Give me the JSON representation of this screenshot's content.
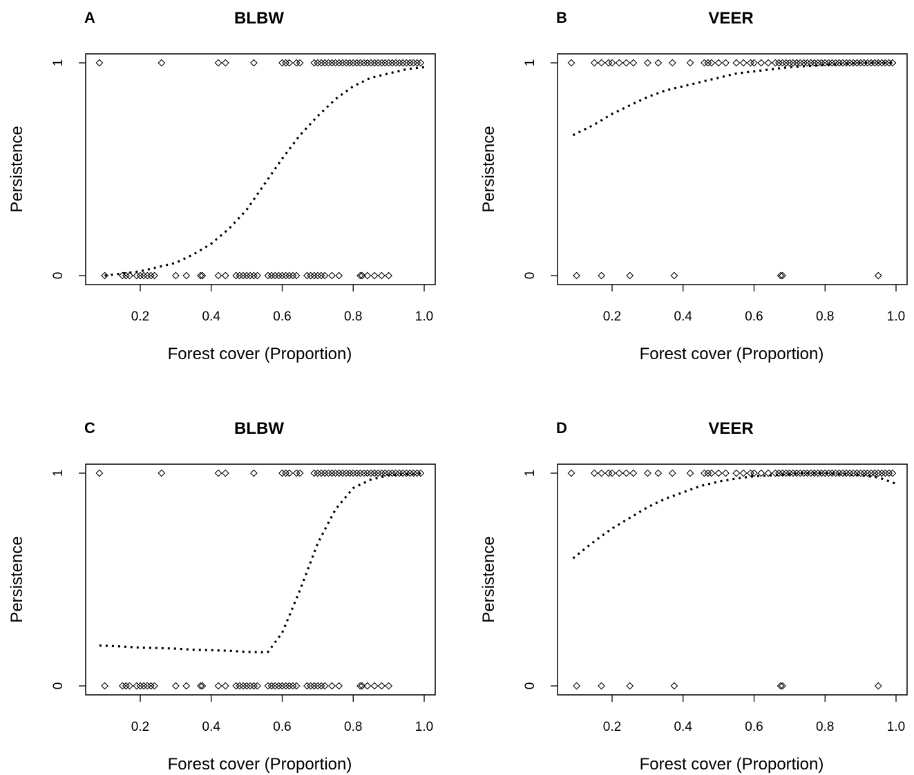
{
  "chart_data": [
    {
      "type": "scatter",
      "panel": "A",
      "title": "BLBW",
      "xlabel": "Forest cover (Proportion)",
      "ylabel": "Persistence",
      "xlim": [
        0.05,
        1.03
      ],
      "ylim": [
        -0.08,
        1.04
      ],
      "xticks": [
        0.2,
        0.4,
        0.6,
        0.8,
        1.0
      ],
      "xtick_labels": [
        "0.2",
        "0.4",
        "0.6",
        "0.8",
        "1.0"
      ],
      "yticks": [
        0,
        1
      ],
      "ytick_labels": [
        "0",
        "1"
      ],
      "grid": false,
      "series": [
        {
          "kind": "points",
          "marker": "diamond-open",
          "points_y1_x": [
            0.085,
            0.26,
            0.42,
            0.44,
            0.52,
            0.6,
            0.61,
            0.62,
            0.64,
            0.65,
            0.69,
            0.7,
            0.71,
            0.72,
            0.73,
            0.74,
            0.75,
            0.76,
            0.77,
            0.78,
            0.79,
            0.8,
            0.81,
            0.82,
            0.83,
            0.84,
            0.85,
            0.86,
            0.87,
            0.88,
            0.89,
            0.9,
            0.91,
            0.92,
            0.93,
            0.94,
            0.95,
            0.96,
            0.97,
            0.98,
            0.99
          ],
          "points_y0_x": [
            0.1,
            0.15,
            0.16,
            0.17,
            0.19,
            0.2,
            0.21,
            0.22,
            0.23,
            0.24,
            0.3,
            0.33,
            0.37,
            0.375,
            0.42,
            0.44,
            0.47,
            0.48,
            0.49,
            0.5,
            0.51,
            0.52,
            0.53,
            0.56,
            0.57,
            0.58,
            0.59,
            0.6,
            0.61,
            0.62,
            0.63,
            0.64,
            0.67,
            0.68,
            0.69,
            0.7,
            0.71,
            0.72,
            0.74,
            0.76,
            0.82,
            0.825,
            0.84,
            0.86,
            0.88,
            0.9
          ]
        },
        {
          "kind": "fitted-curve",
          "line_style": "dotted",
          "x": [
            0.1,
            0.15,
            0.2,
            0.25,
            0.3,
            0.35,
            0.4,
            0.45,
            0.5,
            0.55,
            0.6,
            0.65,
            0.7,
            0.75,
            0.8,
            0.85,
            0.9,
            0.95,
            1.0
          ],
          "y": [
            0.0,
            0.01,
            0.02,
            0.04,
            0.06,
            0.1,
            0.15,
            0.22,
            0.31,
            0.43,
            0.55,
            0.66,
            0.75,
            0.83,
            0.89,
            0.93,
            0.95,
            0.97,
            0.98
          ]
        }
      ]
    },
    {
      "type": "scatter",
      "panel": "B",
      "title": "VEER",
      "xlabel": "Forest cover (Proportion)",
      "ylabel": "Persistence",
      "xlim": [
        0.05,
        1.03
      ],
      "ylim": [
        -0.08,
        1.04
      ],
      "xticks": [
        0.2,
        0.4,
        0.6,
        0.8,
        1.0
      ],
      "xtick_labels": [
        "0.2",
        "0.4",
        "0.6",
        "0.8",
        "1.0"
      ],
      "yticks": [
        0,
        1
      ],
      "ytick_labels": [
        "0",
        "1"
      ],
      "grid": false,
      "series": [
        {
          "kind": "points",
          "marker": "diamond-open",
          "points_y1_x": [
            0.085,
            0.15,
            0.17,
            0.19,
            0.2,
            0.22,
            0.24,
            0.26,
            0.3,
            0.33,
            0.37,
            0.42,
            0.46,
            0.47,
            0.48,
            0.5,
            0.52,
            0.55,
            0.57,
            0.59,
            0.6,
            0.62,
            0.64,
            0.66,
            0.67,
            0.68,
            0.69,
            0.7,
            0.71,
            0.72,
            0.73,
            0.74,
            0.75,
            0.76,
            0.77,
            0.78,
            0.79,
            0.8,
            0.81,
            0.82,
            0.83,
            0.84,
            0.85,
            0.86,
            0.87,
            0.88,
            0.89,
            0.9,
            0.91,
            0.92,
            0.93,
            0.94,
            0.95,
            0.96,
            0.97,
            0.98,
            0.99
          ],
          "points_y0_x": [
            0.1,
            0.17,
            0.25,
            0.375,
            0.675,
            0.68,
            0.95
          ]
        },
        {
          "kind": "fitted-curve",
          "line_style": "dotted",
          "x": [
            0.09,
            0.15,
            0.2,
            0.25,
            0.3,
            0.35,
            0.4,
            0.45,
            0.5,
            0.55,
            0.6,
            0.65,
            0.7,
            0.75,
            0.8,
            0.85,
            0.9,
            0.95,
            1.0
          ],
          "y": [
            0.66,
            0.71,
            0.76,
            0.8,
            0.84,
            0.87,
            0.89,
            0.91,
            0.93,
            0.95,
            0.96,
            0.97,
            0.98,
            0.985,
            0.99,
            0.995,
            1.0,
            1.0,
            1.0
          ]
        }
      ]
    },
    {
      "type": "scatter",
      "panel": "C",
      "title": "BLBW",
      "xlabel": "Forest cover (Proportion)",
      "ylabel": "Persistence",
      "xlim": [
        0.05,
        1.03
      ],
      "ylim": [
        -0.08,
        1.04
      ],
      "xticks": [
        0.2,
        0.4,
        0.6,
        0.8,
        1.0
      ],
      "xtick_labels": [
        "0.2",
        "0.4",
        "0.6",
        "0.8",
        "1.0"
      ],
      "yticks": [
        0,
        1
      ],
      "ytick_labels": [
        "0",
        "1"
      ],
      "grid": false,
      "series": [
        {
          "kind": "points",
          "marker": "diamond-open",
          "points_y1_x": [
            0.085,
            0.26,
            0.42,
            0.44,
            0.52,
            0.6,
            0.61,
            0.62,
            0.64,
            0.65,
            0.69,
            0.7,
            0.71,
            0.72,
            0.73,
            0.74,
            0.75,
            0.76,
            0.77,
            0.78,
            0.79,
            0.8,
            0.81,
            0.82,
            0.83,
            0.84,
            0.85,
            0.86,
            0.87,
            0.88,
            0.89,
            0.9,
            0.91,
            0.92,
            0.93,
            0.94,
            0.95,
            0.96,
            0.97,
            0.98,
            0.99
          ],
          "points_y0_x": [
            0.1,
            0.15,
            0.16,
            0.17,
            0.19,
            0.2,
            0.21,
            0.22,
            0.23,
            0.24,
            0.3,
            0.33,
            0.37,
            0.375,
            0.42,
            0.44,
            0.47,
            0.48,
            0.49,
            0.5,
            0.51,
            0.52,
            0.53,
            0.56,
            0.57,
            0.58,
            0.59,
            0.6,
            0.61,
            0.62,
            0.63,
            0.64,
            0.67,
            0.68,
            0.69,
            0.7,
            0.71,
            0.72,
            0.74,
            0.76,
            0.82,
            0.825,
            0.84,
            0.86,
            0.88,
            0.9
          ]
        },
        {
          "kind": "fitted-curve",
          "line_style": "dotted",
          "x": [
            0.085,
            0.15,
            0.2,
            0.25,
            0.3,
            0.35,
            0.4,
            0.45,
            0.5,
            0.55,
            0.56,
            0.6,
            0.65,
            0.7,
            0.75,
            0.8,
            0.85,
            0.9,
            0.95,
            1.0
          ],
          "y": [
            0.19,
            0.185,
            0.18,
            0.178,
            0.175,
            0.17,
            0.168,
            0.165,
            0.16,
            0.158,
            0.16,
            0.25,
            0.45,
            0.67,
            0.83,
            0.93,
            0.97,
            0.99,
            0.995,
            1.0
          ]
        }
      ]
    },
    {
      "type": "scatter",
      "panel": "D",
      "title": "VEER",
      "xlabel": "Forest cover (Proportion)",
      "ylabel": "Persistence",
      "xlim": [
        0.05,
        1.03
      ],
      "ylim": [
        -0.08,
        1.04
      ],
      "xticks": [
        0.2,
        0.4,
        0.6,
        0.8,
        1.0
      ],
      "xtick_labels": [
        "0.2",
        "0.4",
        "0.6",
        "0.8",
        "1.0"
      ],
      "yticks": [
        0,
        1
      ],
      "ytick_labels": [
        "0",
        "1"
      ],
      "grid": false,
      "series": [
        {
          "kind": "points",
          "marker": "diamond-open",
          "points_y1_x": [
            0.085,
            0.15,
            0.17,
            0.19,
            0.2,
            0.22,
            0.24,
            0.26,
            0.3,
            0.33,
            0.37,
            0.42,
            0.46,
            0.47,
            0.48,
            0.5,
            0.52,
            0.55,
            0.57,
            0.59,
            0.6,
            0.62,
            0.64,
            0.66,
            0.67,
            0.68,
            0.69,
            0.7,
            0.71,
            0.72,
            0.73,
            0.74,
            0.75,
            0.76,
            0.77,
            0.78,
            0.79,
            0.8,
            0.81,
            0.82,
            0.83,
            0.84,
            0.85,
            0.86,
            0.87,
            0.88,
            0.89,
            0.9,
            0.91,
            0.92,
            0.93,
            0.94,
            0.95,
            0.96,
            0.97,
            0.98,
            0.99
          ],
          "points_y0_x": [
            0.1,
            0.17,
            0.25,
            0.375,
            0.675,
            0.68,
            0.95
          ]
        },
        {
          "kind": "fitted-curve",
          "line_style": "dotted",
          "x": [
            0.09,
            0.15,
            0.2,
            0.25,
            0.3,
            0.35,
            0.4,
            0.45,
            0.5,
            0.55,
            0.6,
            0.65,
            0.7,
            0.75,
            0.8,
            0.85,
            0.9,
            0.95,
            1.0
          ],
          "y": [
            0.6,
            0.68,
            0.74,
            0.79,
            0.84,
            0.88,
            0.91,
            0.94,
            0.96,
            0.975,
            0.985,
            0.99,
            0.995,
            1.0,
            1.0,
            0.995,
            0.99,
            0.98,
            0.95
          ]
        }
      ]
    }
  ]
}
